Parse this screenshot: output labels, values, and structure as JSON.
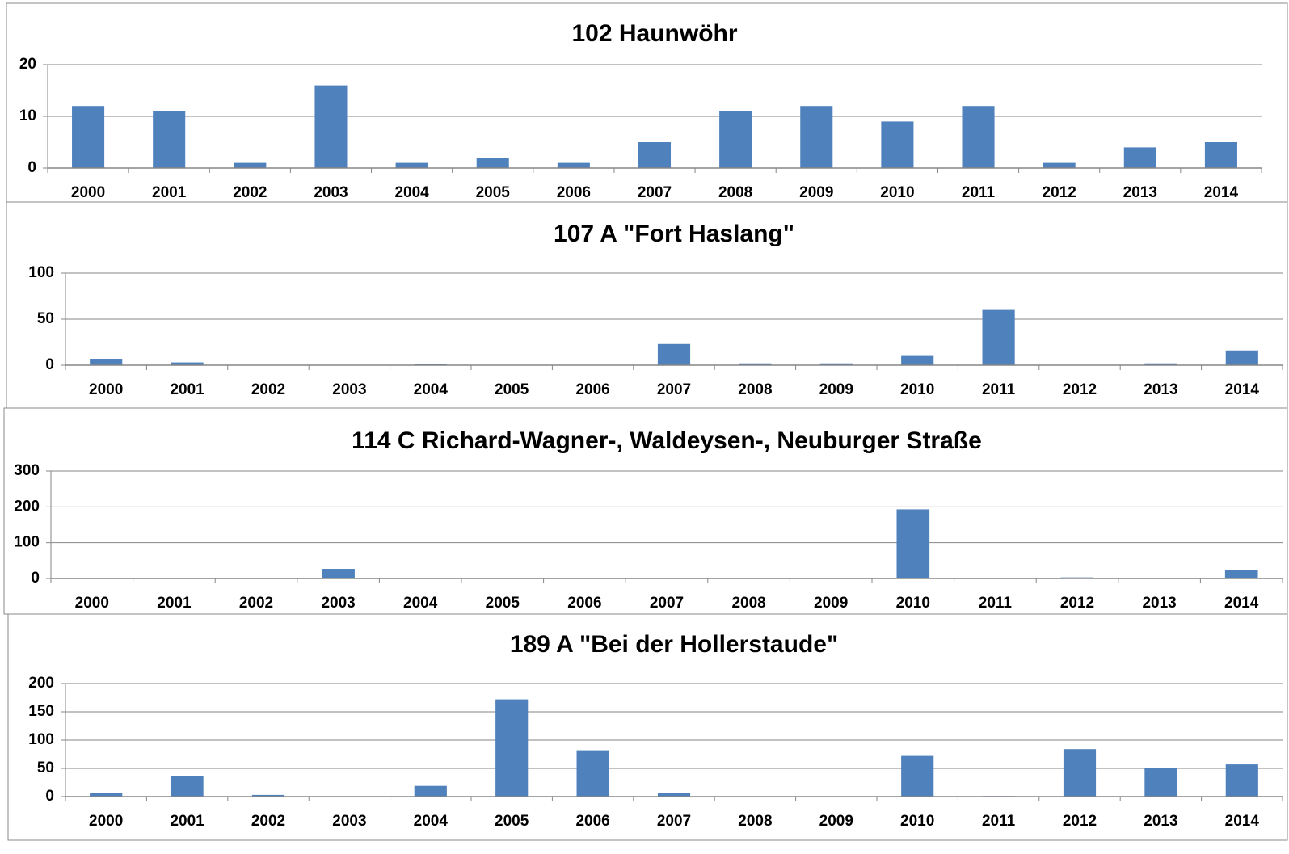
{
  "chart_data": [
    {
      "type": "bar",
      "title": "102 Haunwöhr",
      "categories": [
        "2000",
        "2001",
        "2002",
        "2003",
        "2004",
        "2005",
        "2006",
        "2007",
        "2008",
        "2009",
        "2010",
        "2011",
        "2012",
        "2013",
        "2014"
      ],
      "values": [
        12,
        11,
        1,
        16,
        1,
        2,
        1,
        5,
        11,
        12,
        9,
        12,
        1,
        4,
        5
      ],
      "color": "#4f81bd",
      "ylim": [
        0,
        20
      ],
      "yticks": [
        0,
        10,
        20
      ],
      "grid": true
    },
    {
      "type": "bar",
      "title": "107 A \"Fort Haslang\"",
      "categories": [
        "2000",
        "2001",
        "2002",
        "2003",
        "2004",
        "2005",
        "2006",
        "2007",
        "2008",
        "2009",
        "2010",
        "2011",
        "2012",
        "2013",
        "2014"
      ],
      "values": [
        7,
        3,
        0,
        0,
        1,
        0,
        0,
        23,
        2,
        2,
        10,
        60,
        0,
        2,
        16
      ],
      "color": "#4f81bd",
      "ylim": [
        0,
        100
      ],
      "yticks": [
        0,
        50,
        100
      ],
      "grid": true
    },
    {
      "type": "bar",
      "title": "114 C Richard-Wagner-, Waldeysen-, Neuburger Straße",
      "categories": [
        "2000",
        "2001",
        "2002",
        "2003",
        "2004",
        "2005",
        "2006",
        "2007",
        "2008",
        "2009",
        "2010",
        "2011",
        "2012",
        "2013",
        "2014"
      ],
      "values": [
        0,
        0,
        0,
        27,
        0,
        0,
        0,
        0,
        0,
        0,
        193,
        0,
        3,
        0,
        23
      ],
      "color": "#4f81bd",
      "ylim": [
        0,
        300
      ],
      "yticks": [
        0,
        100,
        200,
        300
      ],
      "grid": true
    },
    {
      "type": "bar",
      "title": "189 A \"Bei der Hollerstaude\"",
      "categories": [
        "2000",
        "2001",
        "2002",
        "2003",
        "2004",
        "2005",
        "2006",
        "2007",
        "2008",
        "2009",
        "2010",
        "2011",
        "2012",
        "2013",
        "2014"
      ],
      "values": [
        7,
        36,
        3,
        0,
        19,
        172,
        82,
        7,
        0,
        0,
        72,
        1,
        84,
        50,
        57
      ],
      "color": "#4f81bd",
      "ylim": [
        0,
        200
      ],
      "yticks": [
        0,
        50,
        100,
        150,
        200
      ],
      "grid": true
    }
  ]
}
